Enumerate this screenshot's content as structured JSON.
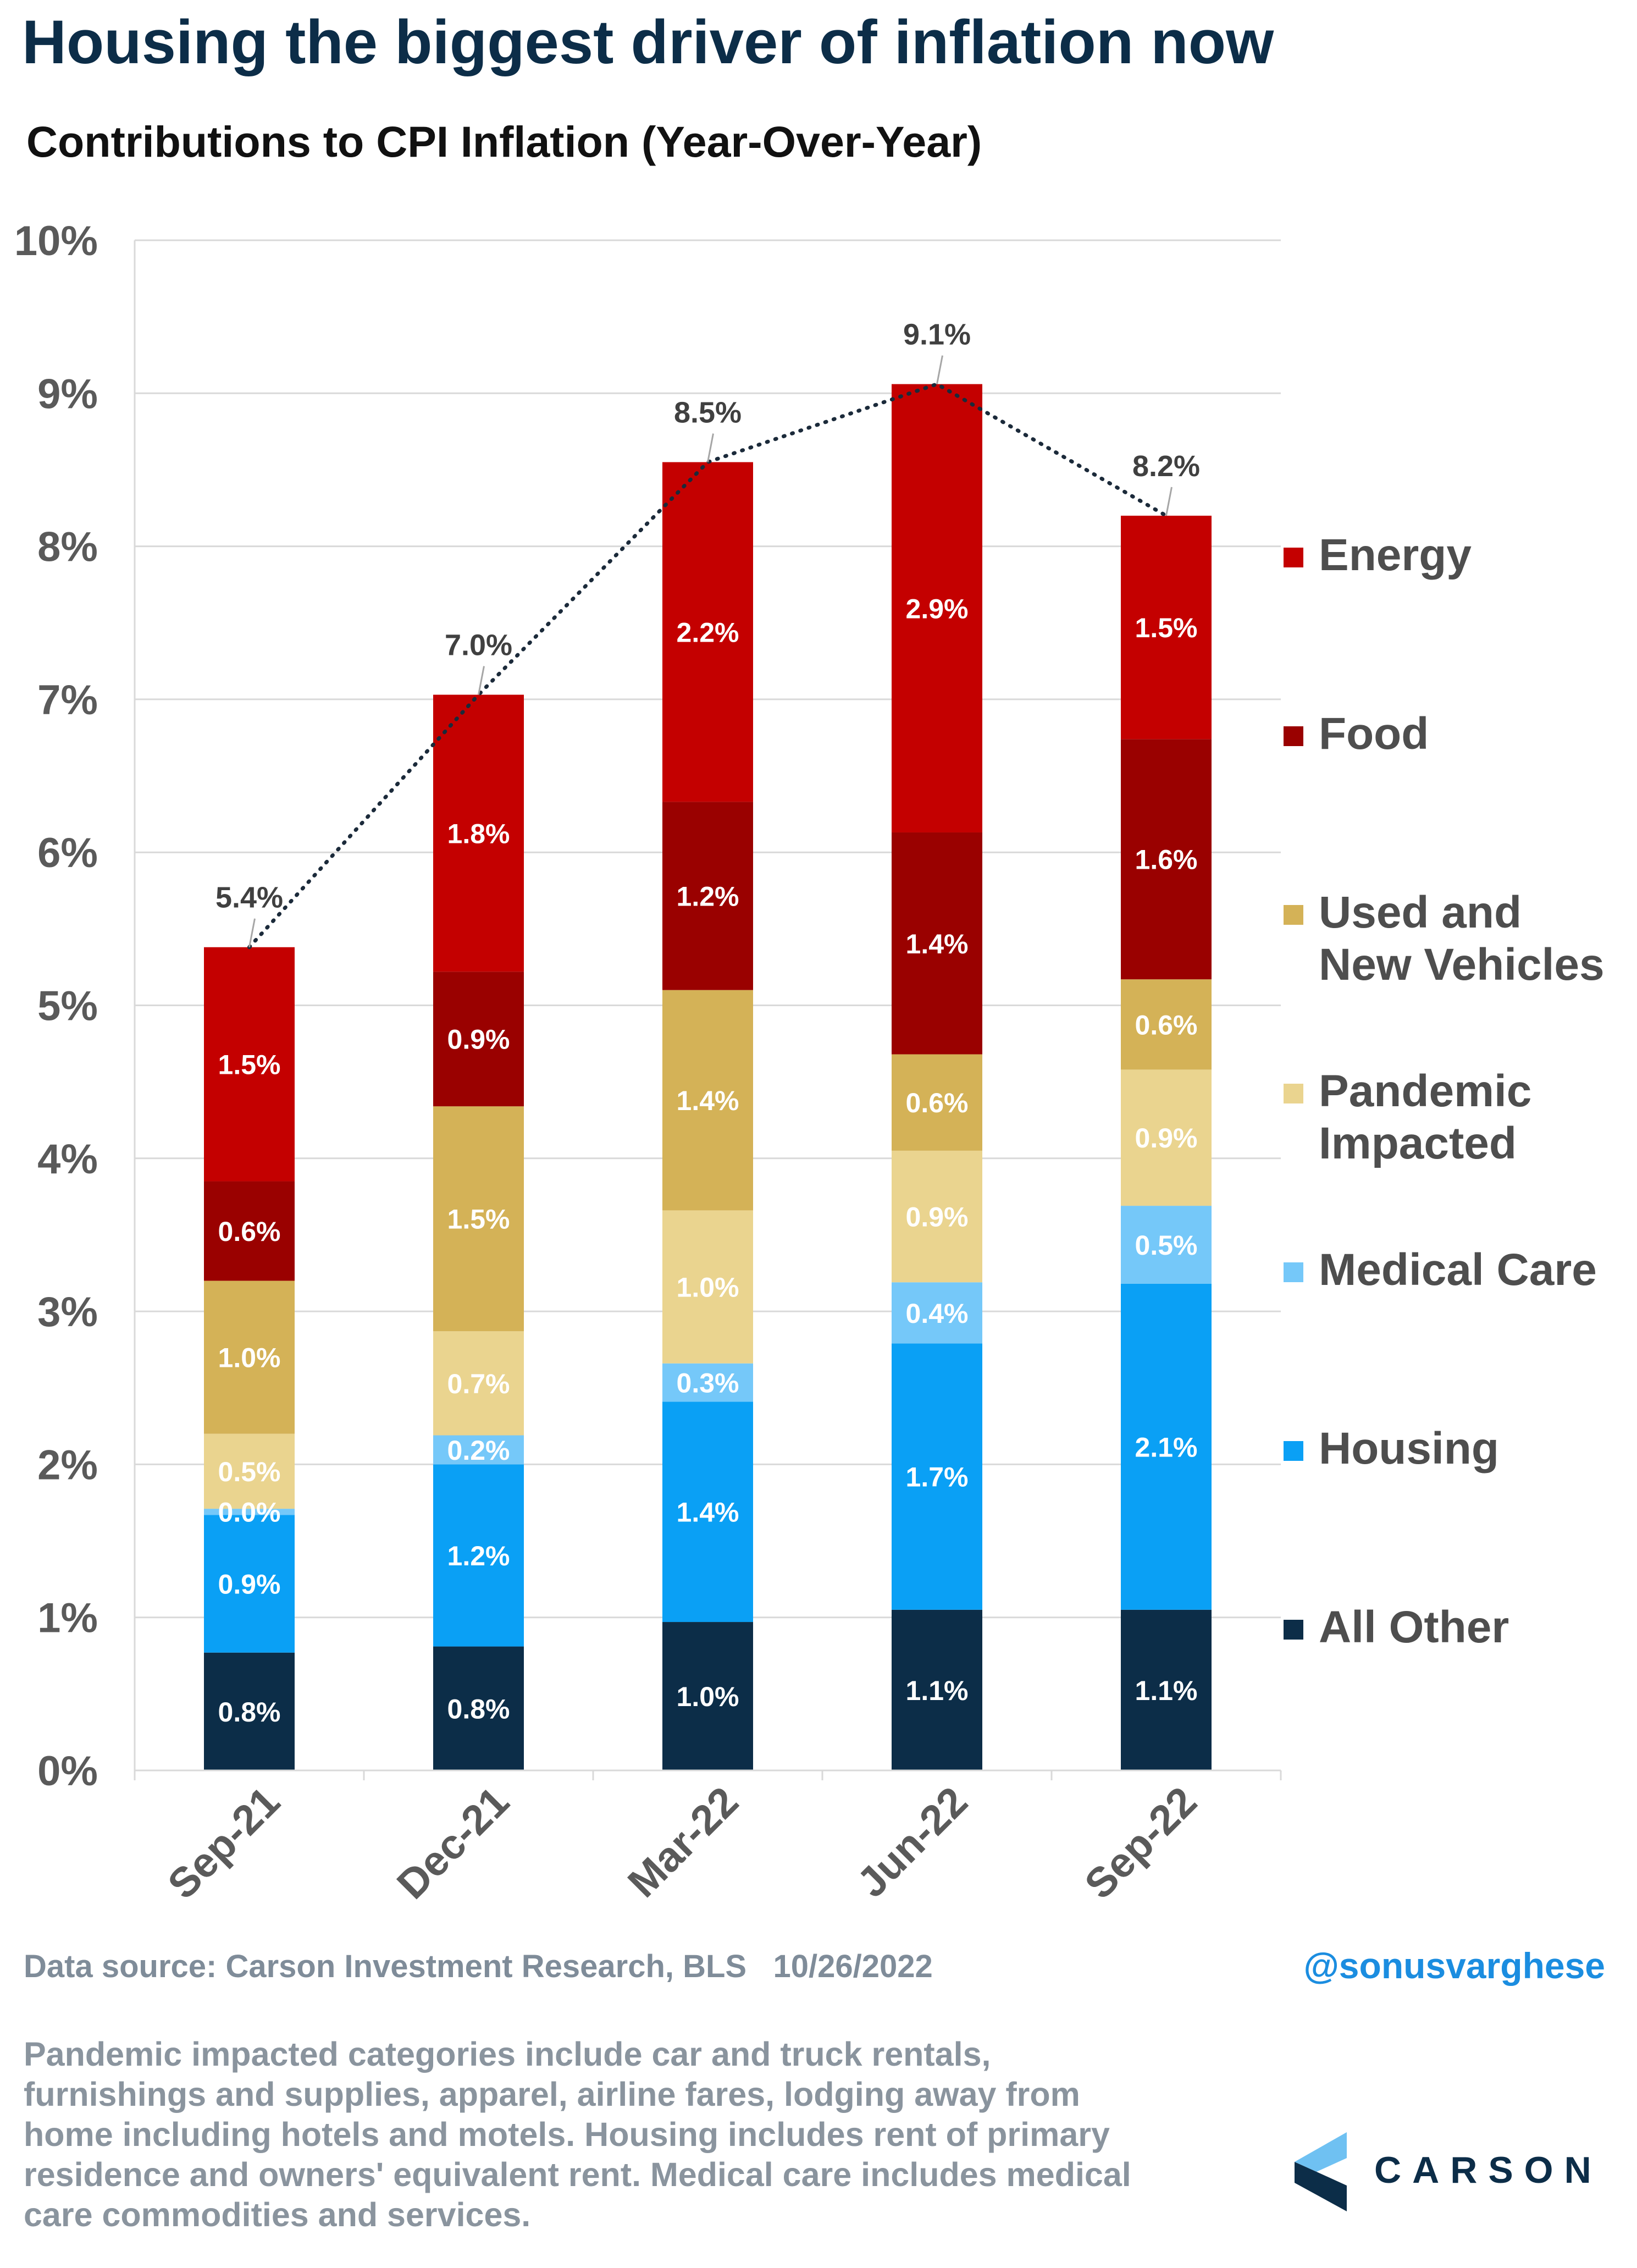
{
  "title": "Housing the biggest driver of inflation now",
  "subtitle": "Contributions to CPI Inflation (Year-Over-Year)",
  "chart_data": {
    "type": "bar",
    "stacked": true,
    "categories": [
      "Sep-21",
      "Dec-21",
      "Mar-22",
      "Jun-22",
      "Sep-22"
    ],
    "ylim": [
      0,
      10
    ],
    "yticks": [
      "0%",
      "1%",
      "2%",
      "3%",
      "4%",
      "5%",
      "6%",
      "7%",
      "8%",
      "9%",
      "10%"
    ],
    "grid": true,
    "legend_position": "right",
    "series": [
      {
        "name": "All Other",
        "color": "#0c2d48",
        "values": [
          0.77,
          0.81,
          0.97,
          1.05,
          1.05
        ],
        "labels": [
          "0.8%",
          "0.8%",
          "1.0%",
          "1.1%",
          "1.1%"
        ]
      },
      {
        "name": "Housing",
        "color": "#0aa0f5",
        "values": [
          0.9,
          1.19,
          1.44,
          1.74,
          2.13
        ],
        "labels": [
          "0.9%",
          "1.2%",
          "1.4%",
          "1.7%",
          "2.1%"
        ]
      },
      {
        "name": "Medical Care",
        "color": "#75c8f9",
        "values": [
          0.04,
          0.19,
          0.25,
          0.4,
          0.51
        ],
        "labels": [
          "0.0%",
          "0.2%",
          "0.3%",
          "0.4%",
          "0.5%"
        ]
      },
      {
        "name": "Pandemic Impacted",
        "color": "#ead48f",
        "values": [
          0.49,
          0.68,
          1.0,
          0.86,
          0.89
        ],
        "labels": [
          "0.5%",
          "0.7%",
          "1.0%",
          "0.9%",
          "0.9%"
        ]
      },
      {
        "name": "Used and New Vehicles",
        "color": "#d4b257",
        "values": [
          1.0,
          1.47,
          1.44,
          0.63,
          0.59
        ],
        "labels": [
          "1.0%",
          "1.5%",
          "1.4%",
          "0.6%",
          "0.6%"
        ]
      },
      {
        "name": "Food",
        "color": "#9a0100",
        "values": [
          0.65,
          0.88,
          1.23,
          1.45,
          1.57
        ],
        "labels": [
          "0.6%",
          "0.9%",
          "1.2%",
          "1.4%",
          "1.6%"
        ]
      },
      {
        "name": "Energy",
        "color": "#c40000",
        "values": [
          1.53,
          1.81,
          2.22,
          2.93,
          1.46
        ],
        "labels": [
          "1.5%",
          "1.8%",
          "2.2%",
          "2.9%",
          "1.5%"
        ]
      }
    ],
    "totals": [
      5.38,
      7.03,
      8.55,
      9.06,
      8.2
    ],
    "total_labels": [
      "5.4%",
      "7.0%",
      "8.5%",
      "9.1%",
      "8.2%"
    ]
  },
  "legend": [
    {
      "label": "Energy",
      "color": "#c40000"
    },
    {
      "label": "Food",
      "color": "#9a0100"
    },
    {
      "label": "Used and\nNew Vehicles",
      "color": "#d4b257"
    },
    {
      "label": "Pandemic\nImpacted",
      "color": "#ead48f"
    },
    {
      "label": "Medical Care",
      "color": "#75c8f9"
    },
    {
      "label": "Housing",
      "color": "#0aa0f5"
    },
    {
      "label": "All Other",
      "color": "#0c2d48"
    }
  ],
  "source": "Data source: Carson Investment Research, BLS   10/26/2022",
  "handle": "@sonusvarghese",
  "footnote": "Pandemic impacted categories include car and truck rentals, furnishings and supplies, apparel, airline fares, lodging away from home including hotels and motels. Housing includes rent of primary residence and owners' equivalent rent. Medical care includes medical care commodities and services.",
  "logo": {
    "text": "CARSON",
    "icon": "carson-chevron-icon",
    "colors": [
      "#6fc1f2",
      "#0c2d48"
    ]
  }
}
